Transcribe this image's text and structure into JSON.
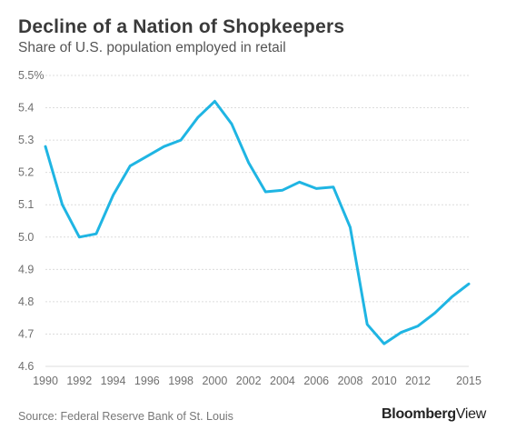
{
  "title": "Decline of a Nation of Shopkeepers",
  "subtitle": "Share of U.S. population employed in retail",
  "source": "Source: Federal Reserve Bank of St. Louis",
  "brand": {
    "part1": "Bloomberg",
    "part2": "View"
  },
  "colors": {
    "line": "#1fb5e3",
    "grid": "#dcdcdc",
    "axis_text": "#6f6f6f"
  },
  "chart_data": {
    "type": "line",
    "title": "Decline of a Nation of Shopkeepers",
    "subtitle": "Share of U.S. population employed in retail",
    "xlabel": "",
    "ylabel": "",
    "xlim": [
      1990,
      2015
    ],
    "ylim": [
      4.6,
      5.5
    ],
    "grid": true,
    "x_ticks": [
      1990,
      1992,
      1994,
      1996,
      1998,
      2000,
      2002,
      2004,
      2006,
      2008,
      2010,
      2012,
      2015
    ],
    "y_ticks": [
      4.6,
      4.7,
      4.8,
      4.9,
      5.0,
      5.1,
      5.2,
      5.3,
      5.4,
      5.5
    ],
    "y_tick_labels": [
      "4.6",
      "4.7",
      "4.8",
      "4.9",
      "5.0",
      "5.1",
      "5.2",
      "5.3",
      "5.4",
      "5.5%"
    ],
    "series": [
      {
        "x": [
          1990,
          1991,
          1992,
          1993,
          1994,
          1995,
          1996,
          1997,
          1998,
          1999,
          2000,
          2001,
          2002,
          2003,
          2004,
          2005,
          2006,
          2007,
          2008,
          2009,
          2010,
          2011,
          2012,
          2013,
          2014,
          2015
        ],
        "values": [
          5.28,
          5.1,
          5.0,
          5.01,
          5.13,
          5.22,
          5.25,
          5.28,
          5.3,
          5.37,
          5.42,
          5.35,
          5.23,
          5.14,
          5.145,
          5.17,
          5.15,
          5.155,
          5.03,
          4.73,
          4.67,
          4.705,
          4.725,
          4.765,
          4.815,
          4.855
        ]
      }
    ]
  }
}
